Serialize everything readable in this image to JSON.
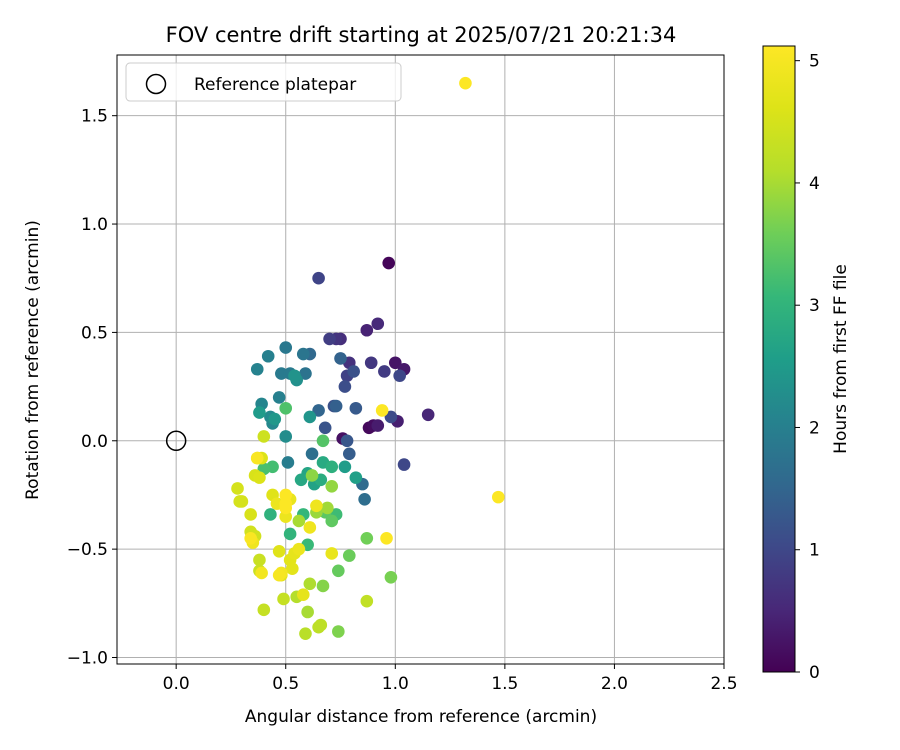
{
  "chart_data": {
    "type": "scatter",
    "title": "FOV centre drift starting at 2025/07/21 20:21:34",
    "xlabel": "Angular distance from reference (arcmin)",
    "ylabel": "Rotation from reference (arcmin)",
    "xlim": [
      -0.27,
      2.5
    ],
    "ylim": [
      -1.03,
      1.78
    ],
    "xticks": [
      0.0,
      0.5,
      1.0,
      1.5,
      2.0,
      2.5
    ],
    "xtick_labels": [
      "0.0",
      "0.5",
      "1.0",
      "1.5",
      "2.0",
      "2.5"
    ],
    "yticks": [
      -1.0,
      -0.5,
      0.0,
      0.5,
      1.0,
      1.5
    ],
    "ytick_labels": [
      "−1.0",
      "−0.5",
      "0.0",
      "0.5",
      "1.0",
      "1.5"
    ],
    "grid": true,
    "legend": {
      "placement": "top-left",
      "entries": [
        "Reference platepar"
      ]
    },
    "reference_point": {
      "x": 0.0,
      "y": 0.0
    },
    "colorbar": {
      "label": "Hours from first FF file",
      "range": [
        0,
        5.12
      ],
      "ticks": [
        0,
        1,
        2,
        3,
        4,
        5
      ],
      "tick_labels": [
        "0",
        "1",
        "2",
        "3",
        "4",
        "5"
      ],
      "colormap": "viridis"
    },
    "points": [
      {
        "x": 0.97,
        "y": 0.82,
        "t": 0.05
      },
      {
        "x": 0.88,
        "y": 0.06,
        "t": 0.1
      },
      {
        "x": 0.9,
        "y": 0.07,
        "t": 0.15
      },
      {
        "x": 0.76,
        "y": 0.01,
        "t": 0.2
      },
      {
        "x": 1.0,
        "y": 0.36,
        "t": 0.25
      },
      {
        "x": 1.04,
        "y": 0.33,
        "t": 0.3
      },
      {
        "x": 0.92,
        "y": 0.07,
        "t": 0.35
      },
      {
        "x": 1.01,
        "y": 0.09,
        "t": 0.4
      },
      {
        "x": 0.87,
        "y": 0.51,
        "t": 0.45
      },
      {
        "x": 1.15,
        "y": 0.12,
        "t": 0.5
      },
      {
        "x": 0.92,
        "y": 0.54,
        "t": 0.55
      },
      {
        "x": 0.75,
        "y": 0.47,
        "t": 0.6
      },
      {
        "x": 0.79,
        "y": 0.36,
        "t": 0.65
      },
      {
        "x": 0.73,
        "y": 0.47,
        "t": 0.7
      },
      {
        "x": 0.89,
        "y": 0.36,
        "t": 0.75
      },
      {
        "x": 0.95,
        "y": 0.32,
        "t": 0.8
      },
      {
        "x": 0.7,
        "y": 0.47,
        "t": 0.85
      },
      {
        "x": 0.78,
        "y": 0.3,
        "t": 0.9
      },
      {
        "x": 0.65,
        "y": 0.75,
        "t": 0.95
      },
      {
        "x": 1.04,
        "y": -0.11,
        "t": 1.0
      },
      {
        "x": 1.02,
        "y": 0.3,
        "t": 1.0
      },
      {
        "x": 0.98,
        "y": 0.11,
        "t": 1.05
      },
      {
        "x": 0.77,
        "y": 0.25,
        "t": 1.1
      },
      {
        "x": 0.81,
        "y": 0.32,
        "t": 1.15
      },
      {
        "x": 0.72,
        "y": 0.16,
        "t": 1.15
      },
      {
        "x": 0.68,
        "y": 0.06,
        "t": 1.2
      },
      {
        "x": 0.78,
        "y": 0.0,
        "t": 1.25
      },
      {
        "x": 0.82,
        "y": 0.15,
        "t": 1.3
      },
      {
        "x": 0.79,
        "y": -0.06,
        "t": 1.35
      },
      {
        "x": 0.73,
        "y": 0.16,
        "t": 1.4
      },
      {
        "x": 0.75,
        "y": 0.38,
        "t": 1.45
      },
      {
        "x": 0.65,
        "y": 0.14,
        "t": 1.5
      },
      {
        "x": 0.61,
        "y": 0.4,
        "t": 1.55
      },
      {
        "x": 0.85,
        "y": -0.2,
        "t": 1.6
      },
      {
        "x": 0.86,
        "y": -0.27,
        "t": 1.65
      },
      {
        "x": 0.62,
        "y": -0.06,
        "t": 1.7
      },
      {
        "x": 0.59,
        "y": 0.31,
        "t": 1.75
      },
      {
        "x": 0.58,
        "y": 0.4,
        "t": 1.8
      },
      {
        "x": 0.5,
        "y": 0.43,
        "t": 1.85
      },
      {
        "x": 0.48,
        "y": 0.31,
        "t": 1.9
      },
      {
        "x": 0.52,
        "y": 0.31,
        "t": 1.9
      },
      {
        "x": 0.51,
        "y": -0.1,
        "t": 1.95
      },
      {
        "x": 0.47,
        "y": 0.2,
        "t": 2.0
      },
      {
        "x": 0.42,
        "y": 0.39,
        "t": 2.0
      },
      {
        "x": 0.37,
        "y": 0.33,
        "t": 2.05
      },
      {
        "x": 0.39,
        "y": 0.17,
        "t": 2.1
      },
      {
        "x": 0.44,
        "y": 0.08,
        "t": 2.15
      },
      {
        "x": 0.43,
        "y": 0.11,
        "t": 2.2
      },
      {
        "x": 0.5,
        "y": 0.02,
        "t": 2.25
      },
      {
        "x": 0.55,
        "y": 0.28,
        "t": 2.3
      },
      {
        "x": 0.54,
        "y": 0.3,
        "t": 2.35
      },
      {
        "x": 0.61,
        "y": 0.11,
        "t": 2.4
      },
      {
        "x": 0.45,
        "y": 0.1,
        "t": 2.45
      },
      {
        "x": 0.38,
        "y": 0.13,
        "t": 2.5
      },
      {
        "x": 0.77,
        "y": -0.12,
        "t": 2.55
      },
      {
        "x": 0.82,
        "y": -0.17,
        "t": 2.6
      },
      {
        "x": 0.63,
        "y": -0.2,
        "t": 2.65
      },
      {
        "x": 0.6,
        "y": -0.15,
        "t": 2.7
      },
      {
        "x": 0.57,
        "y": -0.18,
        "t": 2.75
      },
      {
        "x": 0.67,
        "y": -0.1,
        "t": 2.8
      },
      {
        "x": 0.66,
        "y": -0.18,
        "t": 2.85
      },
      {
        "x": 0.71,
        "y": -0.12,
        "t": 2.9
      },
      {
        "x": 0.43,
        "y": -0.34,
        "t": 2.95
      },
      {
        "x": 0.52,
        "y": -0.43,
        "t": 3.0
      },
      {
        "x": 0.58,
        "y": -0.34,
        "t": 3.05
      },
      {
        "x": 0.6,
        "y": -0.48,
        "t": 3.1
      },
      {
        "x": 0.73,
        "y": -0.34,
        "t": 3.15
      },
      {
        "x": 0.44,
        "y": -0.12,
        "t": 3.2
      },
      {
        "x": 0.4,
        "y": -0.13,
        "t": 3.25
      },
      {
        "x": 0.5,
        "y": 0.15,
        "t": 3.3
      },
      {
        "x": 0.67,
        "y": 0.0,
        "t": 3.35
      },
      {
        "x": 0.68,
        "y": -0.33,
        "t": 3.4
      },
      {
        "x": 0.71,
        "y": -0.37,
        "t": 3.45
      },
      {
        "x": 0.74,
        "y": -0.6,
        "t": 3.5
      },
      {
        "x": 0.79,
        "y": -0.53,
        "t": 3.55
      },
      {
        "x": 0.87,
        "y": -0.45,
        "t": 3.6
      },
      {
        "x": 0.98,
        "y": -0.63,
        "t": 3.65
      },
      {
        "x": 0.74,
        "y": -0.88,
        "t": 3.7
      },
      {
        "x": 0.67,
        "y": -0.67,
        "t": 3.75
      },
      {
        "x": 0.62,
        "y": -0.16,
        "t": 3.8
      },
      {
        "x": 0.71,
        "y": -0.21,
        "t": 3.85
      },
      {
        "x": 0.64,
        "y": -0.33,
        "t": 3.9
      },
      {
        "x": 0.69,
        "y": -0.31,
        "t": 3.95
      },
      {
        "x": 0.56,
        "y": -0.37,
        "t": 4.0
      },
      {
        "x": 0.6,
        "y": -0.79,
        "t": 4.0
      },
      {
        "x": 0.61,
        "y": -0.66,
        "t": 4.05
      },
      {
        "x": 0.55,
        "y": -0.72,
        "t": 4.1
      },
      {
        "x": 0.59,
        "y": -0.89,
        "t": 4.15
      },
      {
        "x": 0.65,
        "y": -0.86,
        "t": 4.2
      },
      {
        "x": 0.66,
        "y": -0.85,
        "t": 4.2
      },
      {
        "x": 0.87,
        "y": -0.74,
        "t": 4.25
      },
      {
        "x": 0.4,
        "y": -0.78,
        "t": 4.3
      },
      {
        "x": 0.49,
        "y": -0.73,
        "t": 4.3
      },
      {
        "x": 0.38,
        "y": -0.55,
        "t": 4.35
      },
      {
        "x": 0.38,
        "y": -0.6,
        "t": 4.35
      },
      {
        "x": 0.4,
        "y": 0.02,
        "t": 4.4
      },
      {
        "x": 0.34,
        "y": -0.42,
        "t": 4.45
      },
      {
        "x": 0.36,
        "y": -0.44,
        "t": 4.45
      },
      {
        "x": 0.29,
        "y": -0.28,
        "t": 4.5
      },
      {
        "x": 0.28,
        "y": -0.22,
        "t": 4.5
      },
      {
        "x": 0.3,
        "y": -0.28,
        "t": 4.5
      },
      {
        "x": 0.34,
        "y": -0.34,
        "t": 4.55
      },
      {
        "x": 0.36,
        "y": -0.16,
        "t": 4.55
      },
      {
        "x": 0.38,
        "y": -0.17,
        "t": 4.6
      },
      {
        "x": 0.37,
        "y": -0.08,
        "t": 4.6
      },
      {
        "x": 0.39,
        "y": -0.08,
        "t": 4.6
      },
      {
        "x": 0.44,
        "y": -0.25,
        "t": 4.65
      },
      {
        "x": 0.47,
        "y": -0.51,
        "t": 4.65
      },
      {
        "x": 0.48,
        "y": -0.62,
        "t": 4.7
      },
      {
        "x": 0.52,
        "y": -0.55,
        "t": 4.7
      },
      {
        "x": 0.53,
        "y": -0.59,
        "t": 4.7
      },
      {
        "x": 0.54,
        "y": -0.52,
        "t": 4.75
      },
      {
        "x": 0.58,
        "y": -0.71,
        "t": 4.75
      },
      {
        "x": 0.71,
        "y": -0.52,
        "t": 4.8
      },
      {
        "x": 0.52,
        "y": -0.27,
        "t": 4.8
      },
      {
        "x": 0.5,
        "y": -0.35,
        "t": 4.85
      },
      {
        "x": 0.46,
        "y": -0.29,
        "t": 4.85
      },
      {
        "x": 0.56,
        "y": -0.5,
        "t": 4.85
      },
      {
        "x": 0.61,
        "y": -0.4,
        "t": 4.9
      },
      {
        "x": 0.64,
        "y": -0.3,
        "t": 4.9
      },
      {
        "x": 0.35,
        "y": -0.47,
        "t": 4.9
      },
      {
        "x": 0.39,
        "y": -0.61,
        "t": 4.95
      },
      {
        "x": 0.48,
        "y": -0.61,
        "t": 4.95
      },
      {
        "x": 0.47,
        "y": -0.62,
        "t": 5.0
      },
      {
        "x": 0.34,
        "y": -0.45,
        "t": 5.05
      },
      {
        "x": 0.37,
        "y": -0.08,
        "t": 5.05
      },
      {
        "x": 0.5,
        "y": -0.25,
        "t": 5.1
      },
      {
        "x": 0.5,
        "y": -0.29,
        "t": 5.1
      },
      {
        "x": 0.5,
        "y": -0.31,
        "t": 5.1
      },
      {
        "x": 0.96,
        "y": -0.45,
        "t": 5.1
      },
      {
        "x": 0.94,
        "y": 0.14,
        "t": 5.1
      },
      {
        "x": 1.47,
        "y": -0.26,
        "t": 5.1
      },
      {
        "x": 1.32,
        "y": 1.65,
        "t": 5.1
      }
    ]
  }
}
